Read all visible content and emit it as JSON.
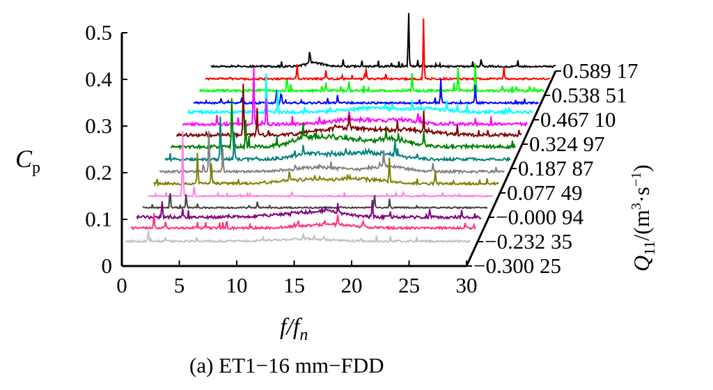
{
  "chart_data": {
    "type": "line",
    "chart_style": "3d-waterfall",
    "caption": "(a) ET1−16 mm−FDD",
    "xlabel": "f/f",
    "xlabel_sub": "n",
    "ylabel": "C",
    "ylabel_sub": "p",
    "zlabel": "Q",
    "zlabel_sub": "11",
    "zlabel_unit": "/(m",
    "zlabel_unit_sup": "3",
    "zlabel_unit_mid": "·s",
    "zlabel_unit_sup2": "−1",
    "zlabel_unit_end": ")",
    "xlim": [
      0,
      30
    ],
    "ylim": [
      0,
      0.5
    ],
    "x_ticks": [
      "0",
      "5",
      "10",
      "15",
      "20",
      "25",
      "30"
    ],
    "y_ticks": [
      "0",
      "0.1",
      "0.2",
      "0.3",
      "0.4",
      "0.5"
    ],
    "z_tick_labels": [
      "−0.300 25",
      "−0.232 35",
      "−0.000 94",
      "0.077 49",
      "0.187 87",
      "0.324 97",
      "0.467 10",
      "0.538 51",
      "0.589 17"
    ],
    "series": [
      {
        "color": "#c0c0c0",
        "base": 0.005,
        "noise": 0.004,
        "peaks": [
          [
            2.0,
            0.02
          ],
          [
            3.5,
            0.008
          ],
          [
            15.5,
            0.008
          ],
          [
            20.5,
            0.006
          ]
        ],
        "bumps": [
          [
            15.5,
            0.006,
            3
          ]
        ]
      },
      {
        "color": "#ff3377",
        "base": 0.008,
        "noise": 0.005,
        "peaks": [
          [
            2.0,
            0.03
          ],
          [
            3.0,
            0.015
          ],
          [
            6.5,
            0.012
          ],
          [
            18,
            0.02
          ],
          [
            20.2,
            0.015
          ]
        ],
        "bumps": [
          [
            17,
            0.01,
            3
          ]
        ]
      },
      {
        "color": "#800080",
        "base": 0.006,
        "noise": 0.006,
        "peaks": [
          [
            2.2,
            0.035
          ],
          [
            4.0,
            0.02
          ],
          [
            17.5,
            0.015
          ],
          [
            20.5,
            0.035
          ],
          [
            25.5,
            0.018
          ]
        ],
        "bumps": [
          [
            14,
            0.01,
            3
          ],
          [
            17,
            0.012,
            2
          ]
        ]
      },
      {
        "color": "#404040",
        "base": 0.003,
        "noise": 0.003,
        "peaks": [
          [
            2.4,
            0.04
          ],
          [
            3.8,
            0.03
          ],
          [
            10,
            0.012
          ],
          [
            20.2,
            0.03
          ],
          [
            21.5,
            0.02
          ]
        ],
        "bumps": []
      },
      {
        "color": "#ff80e8",
        "base": 0.003,
        "noise": 0.003,
        "peaks": [
          [
            3.0,
            0.14
          ],
          [
            4.0,
            0.02
          ],
          [
            12.5,
            0.01
          ],
          [
            22.2,
            0.01
          ]
        ],
        "bumps": []
      },
      {
        "color": "#808000",
        "base": 0.004,
        "noise": 0.005,
        "peaks": [
          [
            3.8,
            0.07
          ],
          [
            5.0,
            0.045
          ],
          [
            11.8,
            0.02
          ],
          [
            20.5,
            0.05
          ],
          [
            24.5,
            0.03
          ]
        ],
        "bumps": [
          [
            13,
            0.01,
            3
          ],
          [
            18,
            0.012,
            3
          ]
        ]
      },
      {
        "color": "#808080",
        "base": 0.005,
        "noise": 0.005,
        "peaks": [
          [
            4.3,
            0.09
          ],
          [
            5.5,
            0.05
          ],
          [
            19.5,
            0.03
          ],
          [
            23.8,
            0.02
          ]
        ],
        "bumps": [
          [
            14,
            0.012,
            3
          ],
          [
            20,
            0.015,
            2
          ]
        ]
      },
      {
        "color": "#008080",
        "base": 0.006,
        "noise": 0.006,
        "peaks": [
          [
            4.8,
            0.1
          ],
          [
            6.0,
            0.06
          ],
          [
            12.0,
            0.02
          ],
          [
            20.0,
            0.03
          ]
        ],
        "bumps": [
          [
            12.5,
            0.015,
            2
          ],
          [
            17.5,
            0.02,
            3
          ]
        ]
      },
      {
        "color": "#008000",
        "base": 0.008,
        "noise": 0.007,
        "peaks": [
          [
            5.3,
            0.11
          ],
          [
            6.5,
            0.06
          ],
          [
            11.5,
            0.03
          ],
          [
            22.0,
            0.03
          ]
        ],
        "bumps": [
          [
            12,
            0.02,
            2
          ],
          [
            15,
            0.02,
            3
          ],
          [
            19.5,
            0.018,
            2
          ]
        ]
      },
      {
        "color": "#800000",
        "base": 0.008,
        "noise": 0.007,
        "peaks": [
          [
            5.8,
            0.12
          ],
          [
            7.0,
            0.06
          ],
          [
            15.0,
            0.03
          ],
          [
            21.5,
            0.025
          ]
        ],
        "bumps": [
          [
            14.5,
            0.02,
            3
          ],
          [
            20,
            0.015,
            3
          ]
        ]
      },
      {
        "color": "#ff00ff",
        "base": 0.007,
        "noise": 0.006,
        "peaks": [
          [
            6.2,
            0.13
          ],
          [
            7.3,
            0.06
          ],
          [
            14.5,
            0.02
          ],
          [
            20.5,
            0.02
          ]
        ],
        "bumps": [
          [
            15,
            0.012,
            3
          ],
          [
            19,
            0.01,
            2
          ]
        ]
      },
      {
        "color": "#00ffff",
        "base": 0.008,
        "noise": 0.006,
        "peaks": [
          [
            6.8,
            0.09
          ],
          [
            7.8,
            0.05
          ],
          [
            19.5,
            0.02
          ],
          [
            22.5,
            0.02
          ]
        ],
        "bumps": [
          [
            16,
            0.012,
            3
          ],
          [
            21,
            0.01,
            2
          ]
        ]
      },
      {
        "color": "#0000ff",
        "base": 0.004,
        "noise": 0.004,
        "peaks": [
          [
            7.2,
            0.03
          ],
          [
            7.6,
            0.025
          ],
          [
            12.5,
            0.015
          ],
          [
            21.5,
            0.05
          ],
          [
            24.5,
            0.04
          ]
        ],
        "bumps": []
      },
      {
        "color": "#00ff00",
        "base": 0.005,
        "noise": 0.005,
        "peaks": [
          [
            7.6,
            0.03
          ],
          [
            11.0,
            0.015
          ],
          [
            13.0,
            0.02
          ],
          [
            18.5,
            0.035
          ],
          [
            22.5,
            0.05
          ],
          [
            24.0,
            0.06
          ]
        ],
        "bumps": []
      },
      {
        "color": "#ff0000",
        "base": 0.006,
        "noise": 0.004,
        "peaks": [
          [
            8.0,
            0.03
          ],
          [
            10.5,
            0.02
          ],
          [
            14.0,
            0.02
          ],
          [
            19.0,
            0.13
          ],
          [
            26.0,
            0.025
          ]
        ],
        "bumps": []
      },
      {
        "color": "#000000",
        "base": 0.008,
        "noise": 0.004,
        "peaks": [
          [
            8.6,
            0.03
          ],
          [
            11.5,
            0.015
          ],
          [
            17.2,
            0.12
          ],
          [
            18.0,
            0.012
          ],
          [
            23.5,
            0.015
          ]
        ],
        "bumps": [
          [
            9,
            0.01,
            1
          ]
        ]
      }
    ]
  }
}
